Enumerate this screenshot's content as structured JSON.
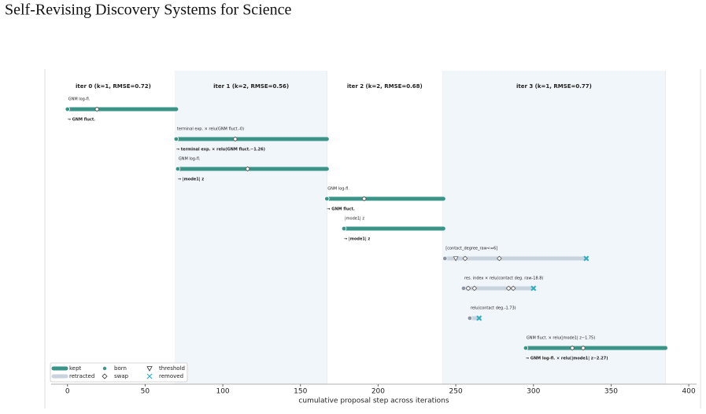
{
  "chart_data": {
    "type": "timeline",
    "title": "Self-Revising Discovery Systems for Science",
    "x_label": "cumulative proposal step across iterations",
    "xlim": [
      -10.5,
      405
    ],
    "xticks": [
      0,
      50,
      100,
      150,
      200,
      250,
      300,
      350,
      400
    ],
    "colors": {
      "kept": "#3b9488",
      "retracted": "#c9d3de",
      "removed": "#2cadc2",
      "result": "#2a8c7e",
      "shade": "#f1f6fb"
    },
    "iterations": [
      {
        "label": "iter 0  (k=1, RMSE=0.72)",
        "start": -10.5,
        "end": 69.5,
        "shaded": false
      },
      {
        "label": "iter 1  (k=2, RMSE=0.56)",
        "start": 69.5,
        "end": 167,
        "shaded": true
      },
      {
        "label": "iter 2  (k=2, RMSE=0.68)",
        "start": 167,
        "end": 241.5,
        "shaded": false
      },
      {
        "label": "iter 3  (k=1, RMSE=0.77)",
        "start": 241.5,
        "end": 385,
        "shaded": true
      }
    ],
    "rows": [
      {
        "label": "GNM log-fl.",
        "start": 0,
        "end": 70,
        "status": "kept",
        "swaps": [
          19
        ],
        "thresholds": [],
        "result": "→ GNM fluct."
      },
      {
        "label": "terminal exp. × relu(GNM fluct.-0)",
        "start": 70,
        "end": 167,
        "status": "kept",
        "swaps": [
          108
        ],
        "thresholds": [],
        "result": "→ terminal exp. × relu(GNM fluct.−1.26)"
      },
      {
        "label": "GNM log-fl.",
        "start": 71,
        "end": 167,
        "status": "kept",
        "swaps": [
          116
        ],
        "thresholds": [],
        "result": "→ |mode1| z"
      },
      {
        "label": "GNM log-fl.",
        "start": 167,
        "end": 242,
        "status": "kept",
        "swaps": [
          191
        ],
        "thresholds": [],
        "result": "→ GNM fluct."
      },
      {
        "label": "|mode1| z",
        "start": 178,
        "end": 242,
        "status": "kept",
        "swaps": [],
        "thresholds": [],
        "result": "→ |mode1| z"
      },
      {
        "label": "[contact_degree_raw<=6]",
        "start": 243,
        "end": 334,
        "status": "retracted",
        "swaps": [
          256,
          278
        ],
        "thresholds": [
          250
        ]
      },
      {
        "label": "res. index × relu(contact deg. raw-18.8)",
        "start": 255,
        "end": 300,
        "status": "retracted",
        "swaps": [
          258,
          262,
          284,
          287
        ],
        "thresholds": []
      },
      {
        "label": "relu(contact deg.-1.73)",
        "start": 259,
        "end": 265,
        "status": "retracted",
        "swaps": [],
        "thresholds": []
      },
      {
        "label": "GNM fluct. × relu(|mode1| z−1.75)",
        "start": 295,
        "end": 385,
        "status": "kept",
        "swaps": [
          325,
          332
        ],
        "thresholds": [],
        "result": "→ GNM log-fl. × relu(|mode1| z−2.27)"
      }
    ],
    "legend": [
      {
        "label": "kept",
        "symbol": "kept"
      },
      {
        "label": "retracted",
        "symbol": "retracted"
      },
      {
        "label": "born",
        "symbol": "born"
      },
      {
        "label": "swap",
        "symbol": "swap"
      },
      {
        "label": "threshold",
        "symbol": "threshold"
      },
      {
        "label": "removed",
        "symbol": "removed"
      }
    ]
  }
}
